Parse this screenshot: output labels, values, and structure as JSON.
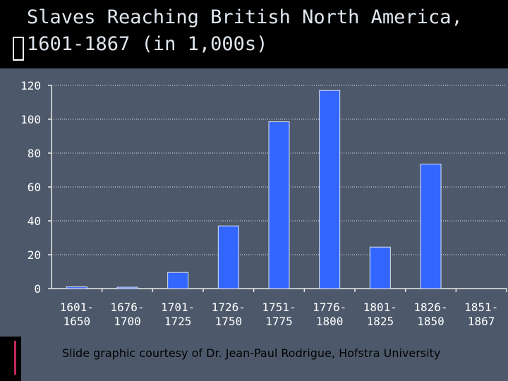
{
  "slide": {
    "title": "Slaves Reaching British North America,\n1601-1867 (in 1,000s)",
    "credit": "Slide graphic courtesy of Dr. Jean-Paul Rodrigue, Hofstra University"
  },
  "colors": {
    "bar": "#3366ff",
    "panel": "#4d596b",
    "text": "#ffffff"
  },
  "chart_data": {
    "type": "bar",
    "title": "",
    "xlabel": "",
    "ylabel": "",
    "categories": [
      [
        "1601-",
        "1650"
      ],
      [
        "1676-",
        "1700"
      ],
      [
        "1701-",
        "1725"
      ],
      [
        "1726-",
        "1750"
      ],
      [
        "1751-",
        "1775"
      ],
      [
        "1776-",
        "1800"
      ],
      [
        "1801-",
        "1825"
      ],
      [
        "1826-",
        "1850"
      ],
      [
        "1851-",
        "1867"
      ]
    ],
    "values": [
      1,
      0.8,
      9.5,
      37,
      98.5,
      117,
      24.5,
      73.5,
      0
    ],
    "ylim": [
      0,
      120
    ],
    "yticks": [
      0,
      20,
      40,
      60,
      80,
      100,
      120
    ],
    "grid": true
  }
}
